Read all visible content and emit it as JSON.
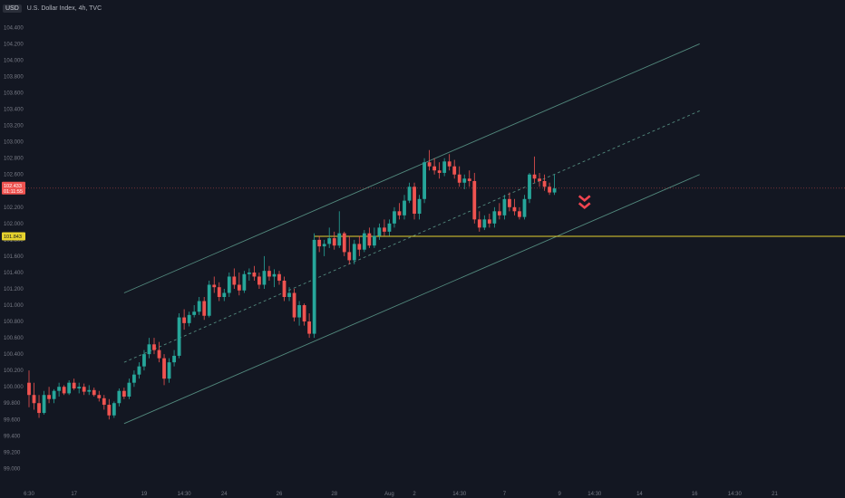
{
  "header": {
    "currency": "USD",
    "symbol": "U.S. Dollar Index, 4h, TVC"
  },
  "colors": {
    "background": "#131722",
    "up": "#26a69a",
    "down": "#ef5350",
    "channel": "#5e9e8e",
    "support": "#e6d22d",
    "arrow": "#ef4450"
  },
  "chart_data": {
    "type": "candlestick",
    "title": "",
    "ylim": [
      98.86,
      104.56
    ],
    "y_ticks": [
      "104.400",
      "104.200",
      "104.000",
      "103.800",
      "103.600",
      "103.400",
      "103.200",
      "103.000",
      "102.800",
      "102.600",
      "102.400",
      "102.200",
      "102.000",
      "101.800",
      "101.600",
      "101.400",
      "101.200",
      "101.000",
      "100.800",
      "100.600",
      "100.400",
      "100.200",
      "100.000",
      "99.800",
      "99.600",
      "99.400",
      "99.200",
      "99.000"
    ],
    "x_ticks": [
      {
        "label": "6:30",
        "index": 0
      },
      {
        "label": "17",
        "index": 9
      },
      {
        "label": "19",
        "index": 23
      },
      {
        "label": "14:30",
        "index": 31
      },
      {
        "label": "24",
        "index": 39
      },
      {
        "label": "26",
        "index": 50
      },
      {
        "label": "28",
        "index": 61
      },
      {
        "label": "Aug",
        "index": 72
      },
      {
        "label": "2",
        "index": 77
      },
      {
        "label": "14:30",
        "index": 86
      },
      {
        "label": "7",
        "index": 95
      },
      {
        "label": "9",
        "index": 106
      },
      {
        "label": "14:30",
        "index": 113
      },
      {
        "label": "14",
        "index": 122
      },
      {
        "label": "16",
        "index": 133
      },
      {
        "label": "14:30",
        "index": 141
      },
      {
        "label": "21",
        "index": 149
      }
    ],
    "current_price": {
      "value": "102.433",
      "countdown": "01:11:55"
    },
    "support_level": {
      "value": "101.843"
    },
    "channel": {
      "upper": [
        [
          19,
          101.15
        ],
        [
          134,
          104.2
        ]
      ],
      "middle": [
        [
          19,
          100.3
        ],
        [
          134,
          103.38
        ]
      ],
      "lower": [
        [
          19,
          99.55
        ],
        [
          134,
          102.6
        ]
      ]
    },
    "signal": {
      "type": "down-arrow",
      "index": 111,
      "price": 102.15
    },
    "candles": [
      [
        100.05,
        100.2,
        99.75,
        99.9
      ],
      [
        99.9,
        100.05,
        99.72,
        99.8
      ],
      [
        99.8,
        99.9,
        99.62,
        99.68
      ],
      [
        99.68,
        99.95,
        99.66,
        99.9
      ],
      [
        99.9,
        100.0,
        99.8,
        99.85
      ],
      [
        99.85,
        99.97,
        99.8,
        99.95
      ],
      [
        99.95,
        100.05,
        99.88,
        100.0
      ],
      [
        100.0,
        100.02,
        99.9,
        99.92
      ],
      [
        99.92,
        100.08,
        99.9,
        100.05
      ],
      [
        100.05,
        100.1,
        99.96,
        99.98
      ],
      [
        99.98,
        100.05,
        99.92,
        100.0
      ],
      [
        100.0,
        100.04,
        99.9,
        99.94
      ],
      [
        99.94,
        100.02,
        99.9,
        99.96
      ],
      [
        99.96,
        99.99,
        99.88,
        99.9
      ],
      [
        99.9,
        99.95,
        99.82,
        99.86
      ],
      [
        99.86,
        99.9,
        99.72,
        99.78
      ],
      [
        99.78,
        99.85,
        99.6,
        99.65
      ],
      [
        99.65,
        99.82,
        99.62,
        99.8
      ],
      [
        99.8,
        99.98,
        99.76,
        99.95
      ],
      [
        99.95,
        99.99,
        99.85,
        99.88
      ],
      [
        99.88,
        100.1,
        99.85,
        100.05
      ],
      [
        100.05,
        100.2,
        100.0,
        100.15
      ],
      [
        100.15,
        100.3,
        100.1,
        100.25
      ],
      [
        100.25,
        100.45,
        100.2,
        100.4
      ],
      [
        100.4,
        100.6,
        100.35,
        100.52
      ],
      [
        100.52,
        100.6,
        100.4,
        100.45
      ],
      [
        100.45,
        100.55,
        100.3,
        100.35
      ],
      [
        100.35,
        100.4,
        100.02,
        100.1
      ],
      [
        100.1,
        100.35,
        100.05,
        100.3
      ],
      [
        100.3,
        100.45,
        100.25,
        100.38
      ],
      [
        100.38,
        100.9,
        100.35,
        100.85
      ],
      [
        100.85,
        100.95,
        100.7,
        100.78
      ],
      [
        100.78,
        100.92,
        100.74,
        100.88
      ],
      [
        100.88,
        101.0,
        100.85,
        100.92
      ],
      [
        100.92,
        101.1,
        100.88,
        101.05
      ],
      [
        101.05,
        101.1,
        100.82,
        100.87
      ],
      [
        100.87,
        101.3,
        100.85,
        101.25
      ],
      [
        101.25,
        101.35,
        101.15,
        101.22
      ],
      [
        101.22,
        101.28,
        101.05,
        101.1
      ],
      [
        101.1,
        101.2,
        101.05,
        101.15
      ],
      [
        101.15,
        101.4,
        101.1,
        101.35
      ],
      [
        101.35,
        101.45,
        101.2,
        101.25
      ],
      [
        101.25,
        101.4,
        101.12,
        101.18
      ],
      [
        101.18,
        101.42,
        101.15,
        101.38
      ],
      [
        101.38,
        101.45,
        101.3,
        101.4
      ],
      [
        101.4,
        101.48,
        101.3,
        101.35
      ],
      [
        101.35,
        101.4,
        101.2,
        101.25
      ],
      [
        101.25,
        101.6,
        101.2,
        101.42
      ],
      [
        101.42,
        101.48,
        101.3,
        101.35
      ],
      [
        101.35,
        101.44,
        101.22,
        101.38
      ],
      [
        101.38,
        101.42,
        101.25,
        101.3
      ],
      [
        101.3,
        101.35,
        101.05,
        101.1
      ],
      [
        101.1,
        101.22,
        101.05,
        101.15
      ],
      [
        101.15,
        101.2,
        100.8,
        100.85
      ],
      [
        100.85,
        101.05,
        100.75,
        101.0
      ],
      [
        101.0,
        101.02,
        100.75,
        100.8
      ],
      [
        100.8,
        100.9,
        100.6,
        100.65
      ],
      [
        100.65,
        101.88,
        100.6,
        101.8
      ],
      [
        101.8,
        101.85,
        101.65,
        101.72
      ],
      [
        101.72,
        101.8,
        101.6,
        101.75
      ],
      [
        101.75,
        101.95,
        101.7,
        101.82
      ],
      [
        101.82,
        101.9,
        101.68,
        101.73
      ],
      [
        101.73,
        102.15,
        101.7,
        101.88
      ],
      [
        101.88,
        101.9,
        101.6,
        101.65
      ],
      [
        101.65,
        101.85,
        101.5,
        101.55
      ],
      [
        101.55,
        101.8,
        101.5,
        101.75
      ],
      [
        101.75,
        101.85,
        101.6,
        101.68
      ],
      [
        101.68,
        101.92,
        101.65,
        101.88
      ],
      [
        101.88,
        101.95,
        101.7,
        101.73
      ],
      [
        101.73,
        101.95,
        101.7,
        101.85
      ],
      [
        101.85,
        102.0,
        101.8,
        101.95
      ],
      [
        101.95,
        102.05,
        101.85,
        101.9
      ],
      [
        101.9,
        102.05,
        101.85,
        102.0
      ],
      [
        102.0,
        102.2,
        101.95,
        102.15
      ],
      [
        102.15,
        102.25,
        102.05,
        102.1
      ],
      [
        102.1,
        102.35,
        102.05,
        102.28
      ],
      [
        102.28,
        102.5,
        102.25,
        102.45
      ],
      [
        102.45,
        102.5,
        102.05,
        102.12
      ],
      [
        102.12,
        102.35,
        102.05,
        102.3
      ],
      [
        102.3,
        102.8,
        102.25,
        102.75
      ],
      [
        102.75,
        102.9,
        102.65,
        102.7
      ],
      [
        102.7,
        102.8,
        102.6,
        102.65
      ],
      [
        102.65,
        102.75,
        102.55,
        102.62
      ],
      [
        102.62,
        102.8,
        102.58,
        102.76
      ],
      [
        102.76,
        102.85,
        102.65,
        102.7
      ],
      [
        102.7,
        102.78,
        102.55,
        102.6
      ],
      [
        102.6,
        102.7,
        102.45,
        102.5
      ],
      [
        102.5,
        102.6,
        102.42,
        102.55
      ],
      [
        102.55,
        102.65,
        102.45,
        102.52
      ],
      [
        102.52,
        102.62,
        102.0,
        102.05
      ],
      [
        102.05,
        102.15,
        101.9,
        101.95
      ],
      [
        101.95,
        102.1,
        101.92,
        102.05
      ],
      [
        102.05,
        102.12,
        101.95,
        102.0
      ],
      [
        102.0,
        102.2,
        101.95,
        102.15
      ],
      [
        102.15,
        102.25,
        102.05,
        102.1
      ],
      [
        102.1,
        102.35,
        102.05,
        102.3
      ],
      [
        102.3,
        102.38,
        102.15,
        102.2
      ],
      [
        102.2,
        102.3,
        102.1,
        102.15
      ],
      [
        102.15,
        102.2,
        102.05,
        102.08
      ],
      [
        102.08,
        102.35,
        102.05,
        102.3
      ],
      [
        102.3,
        102.62,
        102.25,
        102.6
      ],
      [
        102.6,
        102.82,
        102.5,
        102.55
      ],
      [
        102.55,
        102.62,
        102.45,
        102.52
      ],
      [
        102.52,
        102.6,
        102.4,
        102.45
      ],
      [
        102.45,
        102.5,
        102.35,
        102.38
      ],
      [
        102.38,
        102.6,
        102.35,
        102.43
      ]
    ]
  }
}
